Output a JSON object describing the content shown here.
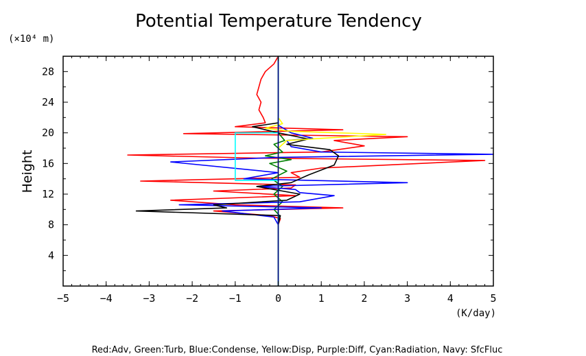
{
  "chart_data": {
    "type": "line",
    "title": "Potential Temperature Tendency",
    "xlabel": "(K/day)",
    "ylabel": "Height",
    "y_unit": "(×10⁴ m)",
    "xlim": [
      -5,
      5
    ],
    "ylim": [
      0,
      30
    ],
    "x_ticks": [
      -5,
      -4,
      -3,
      -2,
      -1,
      0,
      1,
      2,
      3,
      4,
      5
    ],
    "y_ticks": [
      4,
      8,
      12,
      16,
      20,
      24,
      28
    ],
    "grid": false,
    "legend_text": "Red:Adv, Green:Turb, Blue:Condense, Yellow:Disp, Purple:Diff, Cyan:Radiation, Navy: SfcFluc",
    "series": [
      {
        "color": "#ff0000",
        "points": [
          [
            0,
            0
          ],
          [
            0,
            4
          ],
          [
            0,
            8
          ],
          [
            0.05,
            8.8
          ],
          [
            -0.2,
            9.2
          ],
          [
            -1.5,
            9.8
          ],
          [
            1.5,
            10.2
          ],
          [
            -1,
            10.6
          ],
          [
            -2.5,
            11.2
          ],
          [
            0.4,
            11.8
          ],
          [
            -1.5,
            12.4
          ],
          [
            0.3,
            12.8
          ],
          [
            0.4,
            13.2
          ],
          [
            -3.2,
            13.7
          ],
          [
            0.5,
            14.2
          ],
          [
            0.3,
            14.8
          ],
          [
            1,
            15.4
          ],
          [
            4.8,
            16.4
          ],
          [
            -0.5,
            16.7
          ],
          [
            -3.5,
            17.1
          ],
          [
            1,
            17.5
          ],
          [
            2,
            18.3
          ],
          [
            1.3,
            19
          ],
          [
            3,
            19.5
          ],
          [
            -2.2,
            19.9
          ],
          [
            1.5,
            20.4
          ],
          [
            -1,
            20.8
          ],
          [
            -0.3,
            21.3
          ],
          [
            -0.35,
            22
          ],
          [
            -0.45,
            23
          ],
          [
            -0.4,
            24
          ],
          [
            -0.5,
            25
          ],
          [
            -0.45,
            26
          ],
          [
            -0.4,
            27
          ],
          [
            -0.3,
            28
          ],
          [
            -0.1,
            29
          ],
          [
            0,
            30
          ]
        ]
      },
      {
        "color": "#008000",
        "points": [
          [
            0,
            0
          ],
          [
            0,
            8
          ],
          [
            0.03,
            9.2
          ],
          [
            -0.1,
            10
          ],
          [
            0.1,
            11
          ],
          [
            -0.1,
            12
          ],
          [
            0.1,
            13
          ],
          [
            -0.15,
            14
          ],
          [
            0.2,
            15
          ],
          [
            -0.2,
            16
          ],
          [
            0.3,
            16.5
          ],
          [
            -0.3,
            17
          ],
          [
            0.1,
            17.5
          ],
          [
            -0.1,
            18.5
          ],
          [
            0.15,
            19
          ],
          [
            0,
            20
          ],
          [
            0,
            22
          ],
          [
            0,
            30
          ]
        ]
      },
      {
        "color": "#0000ff",
        "points": [
          [
            0,
            0
          ],
          [
            0,
            4
          ],
          [
            0,
            8
          ],
          [
            -0.1,
            9
          ],
          [
            -1.3,
            9.8
          ],
          [
            1,
            10.2
          ],
          [
            -2.3,
            10.6
          ],
          [
            0.5,
            11
          ],
          [
            1.3,
            11.8
          ],
          [
            0.5,
            12.2
          ],
          [
            0.4,
            12.6
          ],
          [
            -0.5,
            13
          ],
          [
            3,
            13.5
          ],
          [
            -0.8,
            14
          ],
          [
            0,
            14.8
          ],
          [
            -2.5,
            16.2
          ],
          [
            0,
            16.8
          ],
          [
            5,
            17.2
          ],
          [
            1,
            17.5
          ],
          [
            0.3,
            18.2
          ],
          [
            0.2,
            19
          ],
          [
            0.8,
            19.3
          ],
          [
            0.3,
            20
          ],
          [
            0,
            21
          ],
          [
            0,
            30
          ]
        ]
      },
      {
        "color": "#000000",
        "points": [
          [
            0,
            0
          ],
          [
            0,
            8
          ],
          [
            0.05,
            9.2
          ],
          [
            -3.3,
            9.8
          ],
          [
            -1.2,
            10.2
          ],
          [
            -1.5,
            10.6
          ],
          [
            0.2,
            11.2
          ],
          [
            0.5,
            12
          ],
          [
            -0.5,
            13
          ],
          [
            0.3,
            13.5
          ],
          [
            0.7,
            14.5
          ],
          [
            1.3,
            15.8
          ],
          [
            1.4,
            17
          ],
          [
            1.2,
            17.8
          ],
          [
            0.2,
            18.5
          ],
          [
            0.7,
            19.2
          ],
          [
            0,
            20
          ],
          [
            -0.6,
            20.8
          ],
          [
            0,
            21.3
          ],
          [
            0,
            30
          ]
        ]
      },
      {
        "color": "#ffff00",
        "points": [
          [
            0,
            0
          ],
          [
            0,
            18
          ],
          [
            0.2,
            19
          ],
          [
            2.5,
            19.8
          ],
          [
            0.3,
            20.2
          ],
          [
            -0.3,
            20.6
          ],
          [
            0.1,
            21.2
          ],
          [
            0,
            22
          ],
          [
            0,
            30
          ]
        ]
      },
      {
        "color": "#00ffff",
        "points": [
          [
            0,
            0
          ],
          [
            0,
            13.8
          ],
          [
            -1,
            13.8
          ],
          [
            -1,
            20
          ],
          [
            0,
            20
          ],
          [
            0,
            30
          ]
        ]
      },
      {
        "color": "#000080",
        "points": [
          [
            0,
            0
          ],
          [
            0,
            30
          ]
        ]
      }
    ]
  }
}
